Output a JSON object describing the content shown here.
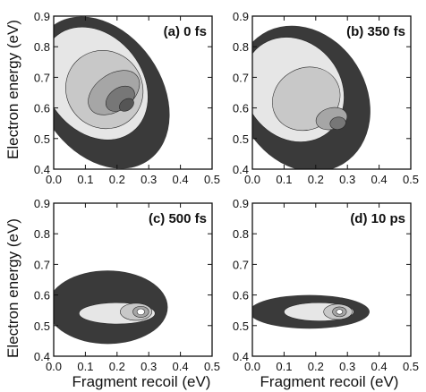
{
  "figure": {
    "xlabel": "Fragment recoil (eV)",
    "ylabel": "Electron energy (eV)"
  },
  "chart_data": [
    {
      "type": "heatmap",
      "panel_label": "(a)",
      "delay": "0 fs",
      "xlabel": "Fragment recoil (eV)",
      "ylabel": "Electron energy (eV)",
      "xlim": [
        0.0,
        0.5
      ],
      "ylim": [
        0.4,
        0.9
      ],
      "x_ticks": [
        "0.0",
        "0.1",
        "0.2",
        "0.3",
        "0.4",
        "0.5"
      ],
      "y_ticks": [
        "0.4",
        "0.5",
        "0.6",
        "0.7",
        "0.8",
        "0.9"
      ],
      "levels": [
        {
          "level": 1,
          "color": "#3a3a3a",
          "center": [
            0.15,
            0.65
          ],
          "half_width": [
            0.19,
            0.27
          ],
          "tilt_deg": -35
        },
        {
          "level": 2,
          "color": "#e6e6e6",
          "center": [
            0.13,
            0.68
          ],
          "half_width": [
            0.15,
            0.2
          ],
          "tilt_deg": -38
        },
        {
          "level": 3,
          "color": "#c8c8c8",
          "center": [
            0.16,
            0.66
          ],
          "half_width": [
            0.12,
            0.13
          ],
          "tilt_deg": -38
        },
        {
          "level": 4,
          "color": "#a6a6a6",
          "center": [
            0.19,
            0.65
          ],
          "half_width": [
            0.09,
            0.06
          ],
          "tilt_deg": -35
        },
        {
          "level": 5,
          "color": "#777777",
          "center": [
            0.21,
            0.63
          ],
          "half_width": [
            0.05,
            0.035
          ],
          "tilt_deg": -35
        },
        {
          "level": 6,
          "color": "#555555",
          "center": [
            0.23,
            0.61
          ],
          "half_width": [
            0.025,
            0.018
          ],
          "tilt_deg": -35
        }
      ]
    },
    {
      "type": "heatmap",
      "panel_label": "(b)",
      "delay": "350 fs",
      "xlabel": "Fragment recoil (eV)",
      "ylabel": "Electron energy (eV)",
      "xlim": [
        0.0,
        0.5
      ],
      "ylim": [
        0.4,
        0.9
      ],
      "x_ticks": [
        "0.0",
        "0.1",
        "0.2",
        "0.3",
        "0.4",
        "0.5"
      ],
      "y_ticks": [
        "0.4",
        "0.5",
        "0.6",
        "0.7",
        "0.8",
        "0.9"
      ],
      "levels": [
        {
          "level": 1,
          "color": "#3a3a3a",
          "center": [
            0.16,
            0.63
          ],
          "half_width": [
            0.2,
            0.25
          ],
          "tilt_deg": -32
        },
        {
          "level": 2,
          "color": "#e6e6e6",
          "center": [
            0.13,
            0.66
          ],
          "half_width": [
            0.15,
            0.18
          ],
          "tilt_deg": -38
        },
        {
          "level": 3,
          "color": "#c8c8c8",
          "center": [
            0.17,
            0.63
          ],
          "half_width": [
            0.11,
            0.1
          ],
          "tilt_deg": -30
        },
        {
          "level": 4,
          "color": "#a6a6a6",
          "center": [
            0.25,
            0.565
          ],
          "half_width": [
            0.05,
            0.035
          ],
          "tilt_deg": -15
        },
        {
          "level": 5,
          "color": "#777777",
          "center": [
            0.27,
            0.55
          ],
          "half_width": [
            0.025,
            0.02
          ],
          "tilt_deg": -10
        }
      ]
    },
    {
      "type": "heatmap",
      "panel_label": "(c)",
      "delay": "500 fs",
      "xlabel": "Fragment recoil (eV)",
      "ylabel": "Electron energy (eV)",
      "xlim": [
        0.0,
        0.5
      ],
      "ylim": [
        0.4,
        0.9
      ],
      "x_ticks": [
        "0.0",
        "0.1",
        "0.2",
        "0.3",
        "0.4",
        "0.5"
      ],
      "y_ticks": [
        "0.4",
        "0.5",
        "0.6",
        "0.7",
        "0.8",
        "0.9"
      ],
      "levels": [
        {
          "level": 1,
          "color": "#3a3a3a",
          "center": [
            0.17,
            0.56
          ],
          "half_width": [
            0.19,
            0.12
          ],
          "tilt_deg": 0
        },
        {
          "level": 2,
          "color": "#e6e6e6",
          "center": [
            0.2,
            0.54
          ],
          "half_width": [
            0.12,
            0.035
          ],
          "tilt_deg": 0
        },
        {
          "level": 3,
          "color": "#c8c8c8",
          "center": [
            0.26,
            0.545
          ],
          "half_width": [
            0.05,
            0.028
          ],
          "tilt_deg": 0
        },
        {
          "level": 4,
          "color": "#a6a6a6",
          "center": [
            0.275,
            0.545
          ],
          "half_width": [
            0.025,
            0.018
          ],
          "tilt_deg": 0
        },
        {
          "level": 5,
          "color": "#ffffff",
          "center": [
            0.275,
            0.545
          ],
          "half_width": [
            0.012,
            0.01
          ],
          "tilt_deg": 0
        }
      ]
    },
    {
      "type": "heatmap",
      "panel_label": "(d)",
      "delay": "10 ps",
      "xlabel": "Fragment recoil (eV)",
      "ylabel": "Electron energy (eV)",
      "xlim": [
        0.0,
        0.5
      ],
      "ylim": [
        0.4,
        0.9
      ],
      "x_ticks": [
        "0.0",
        "0.1",
        "0.2",
        "0.3",
        "0.4",
        "0.5"
      ],
      "y_ticks": [
        "0.4",
        "0.5",
        "0.6",
        "0.7",
        "0.8",
        "0.9"
      ],
      "levels": [
        {
          "level": 1,
          "color": "#3a3a3a",
          "center": [
            0.18,
            0.545
          ],
          "half_width": [
            0.19,
            0.055
          ],
          "tilt_deg": 0
        },
        {
          "level": 2,
          "color": "#e6e6e6",
          "center": [
            0.21,
            0.545
          ],
          "half_width": [
            0.11,
            0.03
          ],
          "tilt_deg": 0
        },
        {
          "level": 3,
          "color": "#c8c8c8",
          "center": [
            0.27,
            0.545
          ],
          "half_width": [
            0.045,
            0.025
          ],
          "tilt_deg": 0
        },
        {
          "level": 4,
          "color": "#a6a6a6",
          "center": [
            0.275,
            0.545
          ],
          "half_width": [
            0.022,
            0.016
          ],
          "tilt_deg": 0
        },
        {
          "level": 5,
          "color": "#ffffff",
          "center": [
            0.275,
            0.545
          ],
          "half_width": [
            0.01,
            0.008
          ],
          "tilt_deg": 0
        }
      ]
    }
  ]
}
